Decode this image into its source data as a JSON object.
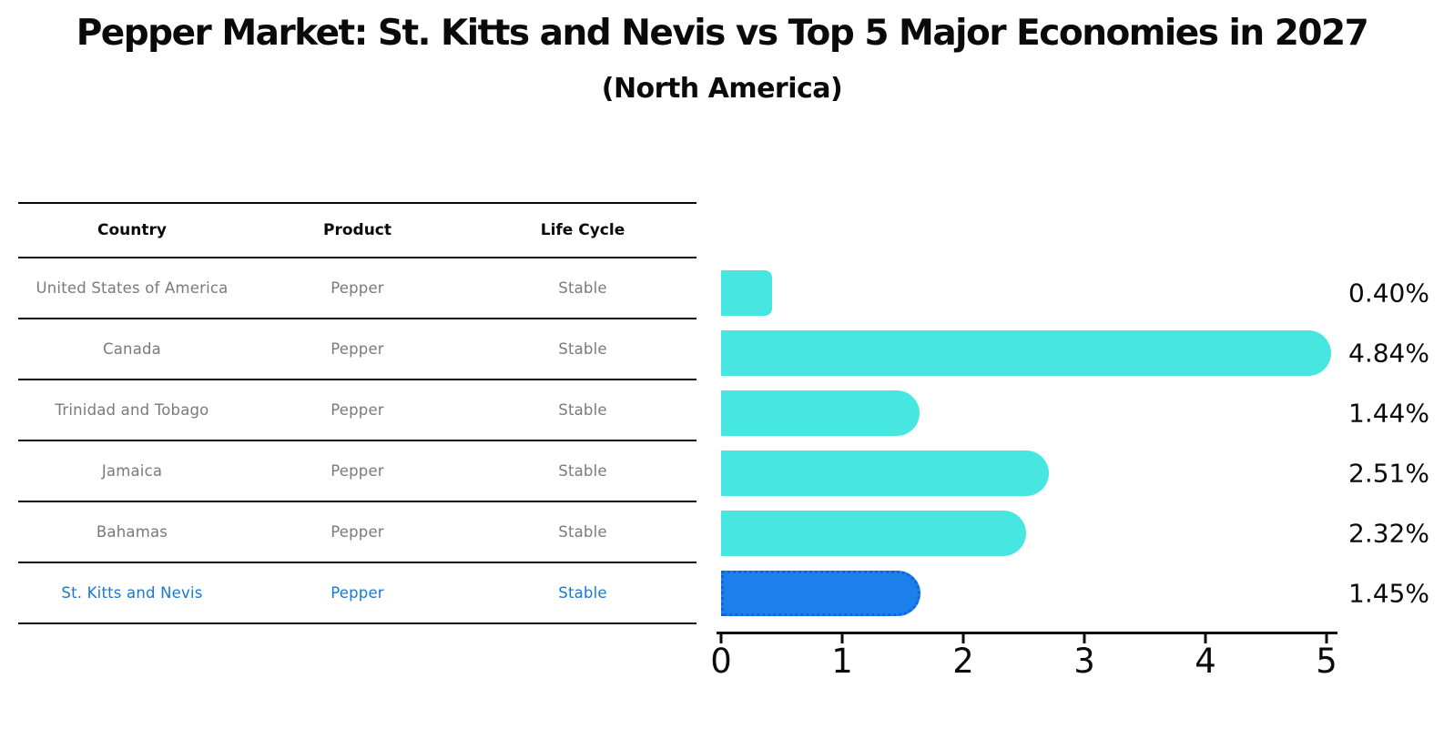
{
  "title": "Pepper Market: St. Kitts and Nevis vs Top 5 Major Economies in 2027",
  "subtitle": "(North America)",
  "table": {
    "headers": {
      "country": "Country",
      "product": "Product",
      "life_cycle": "Life Cycle"
    },
    "rows": [
      {
        "country": "United States of America",
        "product": "Pepper",
        "life_cycle": "Stable",
        "highlight": false
      },
      {
        "country": "Canada",
        "product": "Pepper",
        "life_cycle": "Stable",
        "highlight": false
      },
      {
        "country": "Trinidad and Tobago",
        "product": "Pepper",
        "life_cycle": "Stable",
        "highlight": false
      },
      {
        "country": "Jamaica",
        "product": "Pepper",
        "life_cycle": "Stable",
        "highlight": false
      },
      {
        "country": "Bahamas",
        "product": "Pepper",
        "life_cycle": "Stable",
        "highlight": false
      },
      {
        "country": "St. Kitts and Nevis",
        "product": "Pepper",
        "life_cycle": "Stable",
        "highlight": true
      }
    ]
  },
  "chart_data": {
    "type": "bar",
    "orientation": "horizontal",
    "categories": [
      "United States of America",
      "Canada",
      "Trinidad and Tobago",
      "Jamaica",
      "Bahamas",
      "St. Kitts and Nevis"
    ],
    "values": [
      0.4,
      4.84,
      1.44,
      2.51,
      2.32,
      1.45
    ],
    "value_labels": [
      "0.40%",
      "4.84%",
      "1.44%",
      "2.51%",
      "2.32%",
      "1.45%"
    ],
    "xlim": [
      0,
      5
    ],
    "x_ticks": [
      "0",
      "1",
      "2",
      "3",
      "4",
      "5"
    ],
    "highlight_index": 5,
    "grid": false,
    "legend": "none",
    "bar_color": "#47e6e1",
    "highlight_bar_color": "#1c80ec",
    "highlight_bar_border": "#1263d6"
  },
  "colors": {
    "muted_text": "#7a7a7a",
    "highlight_text": "#1778d6",
    "axis": "#0a0a0a"
  }
}
